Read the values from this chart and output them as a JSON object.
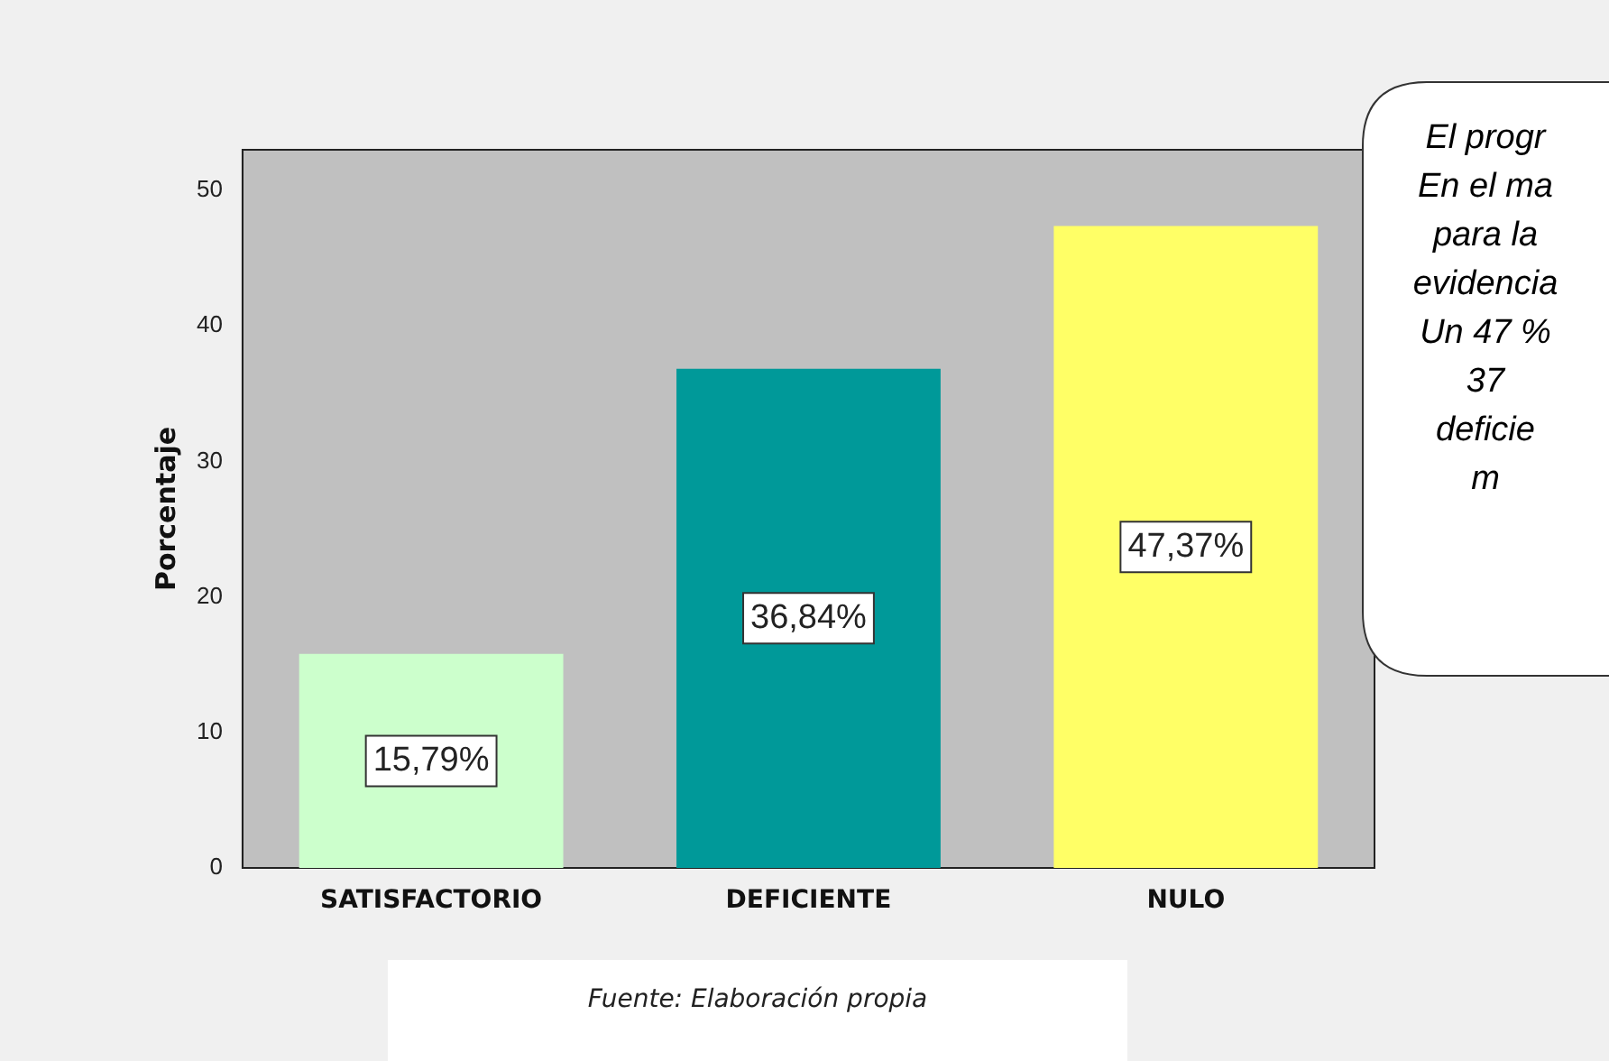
{
  "chart_data": {
    "type": "bar",
    "ylabel": "Porcentaje",
    "categories": [
      "SATISFACTORIO",
      "DEFICIENTE",
      "NULO"
    ],
    "values": [
      15.79,
      36.84,
      47.37
    ],
    "colors": [
      "#ccffcc",
      "#009999",
      "#ffff66"
    ],
    "value_labels": [
      "15,79%",
      "36,84%",
      "47,37%"
    ],
    "ylim": [
      0,
      53
    ],
    "yticks": [
      0,
      10,
      20,
      30,
      40,
      50
    ],
    "grid": false,
    "legend": false,
    "annotations": [
      "El progr\nEn el ma\npara la\nevidencia\nUn 47 %\n37\ndeficie\nm",
      "Fuente: Elaboración propia"
    ]
  }
}
